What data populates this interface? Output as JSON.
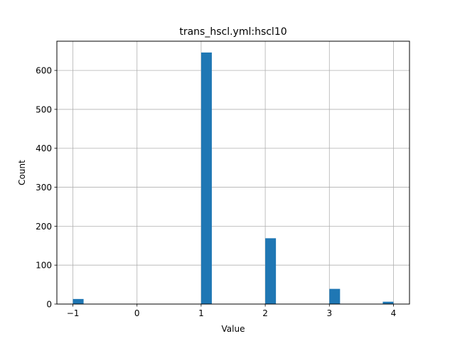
{
  "chart_data": {
    "type": "bar",
    "title": "trans_hscl.yml:hscl10",
    "xlabel": "Value",
    "ylabel": "Count",
    "xlim": [
      -1.25,
      4.25
    ],
    "ylim": [
      0,
      675
    ],
    "xticks": [
      -1,
      0,
      1,
      2,
      3,
      4
    ],
    "xtick_labels": [
      "−1",
      "0",
      "1",
      "2",
      "3",
      "4"
    ],
    "yticks": [
      0,
      100,
      200,
      300,
      400,
      500,
      600
    ],
    "ytick_labels": [
      "0",
      "100",
      "200",
      "300",
      "400",
      "500",
      "600"
    ],
    "grid": true,
    "bar_color": "#1f77b4",
    "bin_width": 0.1667,
    "bars": [
      {
        "x": -1.0,
        "value": 13
      },
      {
        "x": 1.0,
        "value": 646
      },
      {
        "x": 2.0,
        "value": 169
      },
      {
        "x": 3.0,
        "value": 39
      },
      {
        "x": 3.8333,
        "value": 6
      }
    ]
  }
}
